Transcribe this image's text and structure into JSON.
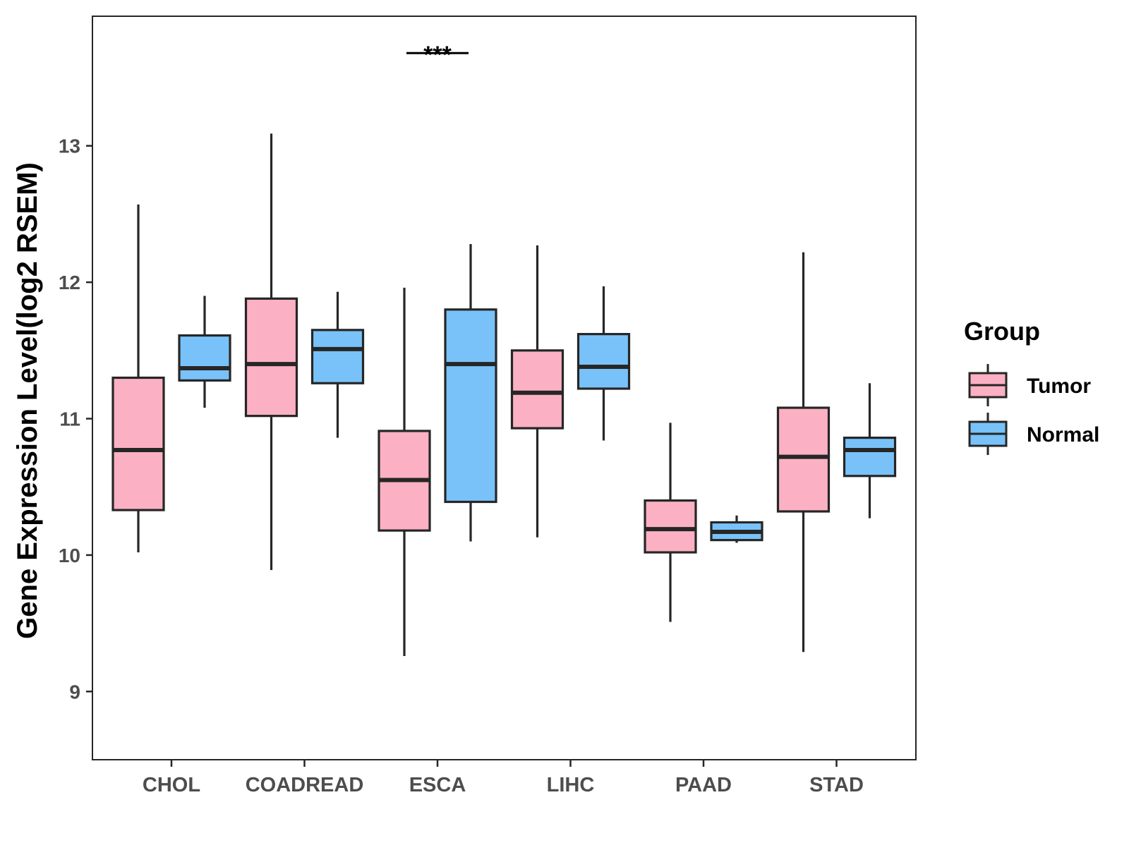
{
  "chart_data": {
    "type": "boxplot",
    "title": "",
    "xlabel": "",
    "ylabel": "Gene Expression Level(log2 RSEM)",
    "ylim": [
      8.5,
      13.95
    ],
    "yticks": [
      9,
      10,
      11,
      12,
      13
    ],
    "categories": [
      "CHOL",
      "COADREAD",
      "ESCA",
      "LIHC",
      "PAAD",
      "STAD"
    ],
    "legend": {
      "title": "Group",
      "position": "right",
      "entries": [
        "Tumor",
        "Normal"
      ]
    },
    "colors": {
      "Tumor": "#fbb1c3",
      "Normal": "#79c2f9",
      "outline": "#262626",
      "axis": "#262626",
      "tick_label": "#4d4d4d"
    },
    "series": [
      {
        "name": "Tumor",
        "boxes": [
          {
            "category": "CHOL",
            "min": 10.02,
            "q1": 10.33,
            "median": 10.77,
            "q3": 11.3,
            "max": 12.57
          },
          {
            "category": "COADREAD",
            "min": 9.89,
            "q1": 11.02,
            "median": 11.4,
            "q3": 11.88,
            "max": 13.09
          },
          {
            "category": "ESCA",
            "min": 9.26,
            "q1": 10.18,
            "median": 10.55,
            "q3": 10.91,
            "max": 11.96
          },
          {
            "category": "LIHC",
            "min": 10.13,
            "q1": 10.93,
            "median": 11.19,
            "q3": 11.5,
            "max": 12.27
          },
          {
            "category": "PAAD",
            "min": 9.51,
            "q1": 10.02,
            "median": 10.19,
            "q3": 10.4,
            "max": 10.97
          },
          {
            "category": "STAD",
            "min": 9.29,
            "q1": 10.32,
            "median": 10.72,
            "q3": 11.08,
            "max": 12.22
          }
        ]
      },
      {
        "name": "Normal",
        "boxes": [
          {
            "category": "CHOL",
            "min": 11.08,
            "q1": 11.28,
            "median": 11.37,
            "q3": 11.61,
            "max": 11.9
          },
          {
            "category": "COADREAD",
            "min": 10.86,
            "q1": 11.26,
            "median": 11.51,
            "q3": 11.65,
            "max": 11.93
          },
          {
            "category": "ESCA",
            "min": 10.1,
            "q1": 10.39,
            "median": 11.4,
            "q3": 11.8,
            "max": 12.28
          },
          {
            "category": "LIHC",
            "min": 10.84,
            "q1": 11.22,
            "median": 11.38,
            "q3": 11.62,
            "max": 11.97
          },
          {
            "category": "PAAD",
            "min": 10.09,
            "q1": 10.11,
            "median": 10.17,
            "q3": 10.24,
            "max": 10.29
          },
          {
            "category": "STAD",
            "min": 10.27,
            "q1": 10.58,
            "median": 10.77,
            "q3": 10.86,
            "max": 11.26
          }
        ]
      }
    ],
    "annotations": [
      {
        "category": "ESCA",
        "text": "***",
        "y": 13.68
      }
    ]
  }
}
